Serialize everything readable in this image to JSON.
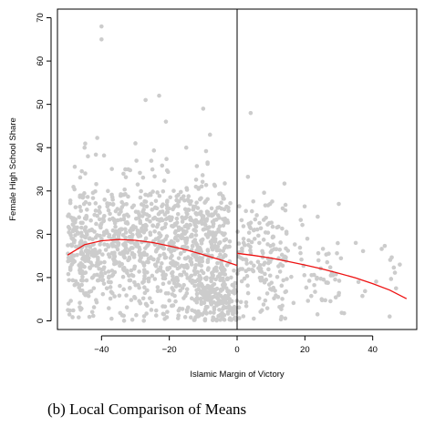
{
  "caption": "(b) Local Comparison of Means",
  "chart_data": {
    "type": "scatter",
    "xlabel": "Islamic Margin of Victory",
    "ylabel": "Female High School Share",
    "xlim": [
      -53,
      53
    ],
    "ylim": [
      -2,
      72
    ],
    "xticks": [
      -40,
      -20,
      0,
      20,
      40
    ],
    "yticks": [
      0,
      10,
      20,
      30,
      40,
      50,
      60,
      70
    ],
    "cutoff_x": 0,
    "colors": {
      "points": "#cccccc",
      "fit": "#ee1111",
      "axis": "#000000"
    },
    "grid": false,
    "outliers": [
      {
        "x": -40,
        "y": 68
      },
      {
        "x": -40,
        "y": 65
      },
      {
        "x": -27,
        "y": 51
      },
      {
        "x": -23,
        "y": 52
      },
      {
        "x": -21,
        "y": 46
      },
      {
        "x": -10,
        "y": 49
      },
      {
        "x": -8,
        "y": 43
      },
      {
        "x": 4,
        "y": 48
      },
      {
        "x": -45,
        "y": 40
      },
      {
        "x": -44,
        "y": 38
      },
      {
        "x": -30,
        "y": 41
      },
      {
        "x": -15,
        "y": 40
      },
      {
        "x": 30,
        "y": 27
      },
      {
        "x": 48,
        "y": 13
      },
      {
        "x": 45,
        "y": 1
      },
      {
        "x": 35,
        "y": 18
      }
    ],
    "density_bands": [
      {
        "x_range": [
          -50,
          -2
        ],
        "y_mean": 17,
        "y_sd": 8,
        "count": 1150
      },
      {
        "x_range": [
          -12,
          0
        ],
        "y_mean": 5,
        "y_sd": 3,
        "count": 160
      },
      {
        "x_range": [
          0,
          15
        ],
        "y_mean": 15,
        "y_sd": 7,
        "count": 170
      },
      {
        "x_range": [
          15,
          30
        ],
        "y_mean": 12,
        "y_sd": 6,
        "count": 50
      },
      {
        "x_range": [
          30,
          48
        ],
        "y_mean": 8,
        "y_sd": 5,
        "count": 18
      }
    ],
    "fit_left": {
      "x": [
        -50,
        -45,
        -40,
        -35,
        -30,
        -25,
        -20,
        -15,
        -10,
        -5,
        0
      ],
      "y": [
        15.2,
        17.6,
        18.5,
        18.8,
        18.6,
        18.1,
        17.3,
        16.4,
        15.3,
        14.1,
        12.8
      ]
    },
    "fit_right": {
      "x": [
        0,
        5,
        10,
        15,
        20,
        25,
        30,
        35,
        40,
        45,
        50
      ],
      "y": [
        15.6,
        15.1,
        14.5,
        13.7,
        12.9,
        12.0,
        11.0,
        9.9,
        8.6,
        7.1,
        5.1
      ]
    }
  }
}
